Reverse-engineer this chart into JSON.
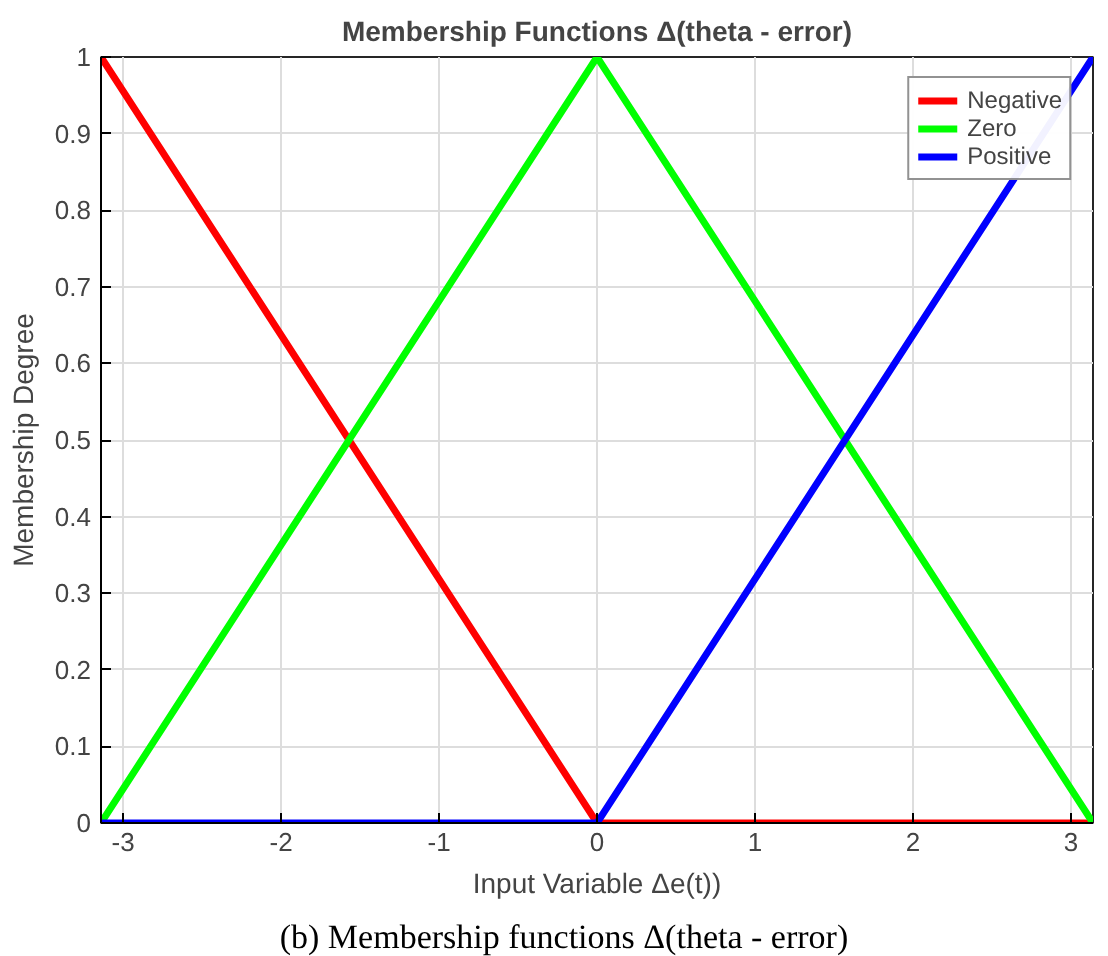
{
  "chart_data": {
    "type": "line",
    "title": "Membership Functions Δ(theta - error)",
    "xlabel": "Input Variable Δe(t))",
    "ylabel": "Membership Degree",
    "series": [
      {
        "name": "Negative",
        "color": "#ff0000",
        "x": [
          -3.14,
          0,
          3.14
        ],
        "values": [
          1,
          0,
          0
        ]
      },
      {
        "name": "Zero",
        "color": "#00ff00",
        "x": [
          -3.14,
          0,
          3.14
        ],
        "values": [
          0,
          1,
          0
        ]
      },
      {
        "name": "Positive",
        "color": "#0000ff",
        "x": [
          -3.14,
          0,
          3.14
        ],
        "values": [
          0,
          0,
          1
        ]
      }
    ],
    "xlim": [
      -3.14,
      3.14
    ],
    "ylim": [
      0,
      1
    ],
    "xticks": [
      -3,
      -2,
      -1,
      0,
      1,
      2,
      3
    ],
    "yticks": [
      0,
      0.1,
      0.2,
      0.3,
      0.4,
      0.5,
      0.6,
      0.7,
      0.8,
      0.9,
      1
    ],
    "grid": true,
    "legend": "top right",
    "marker": "none",
    "line_style": "solid",
    "annotations": [
      "(b) Membership functions Δ(theta - error)"
    ]
  }
}
